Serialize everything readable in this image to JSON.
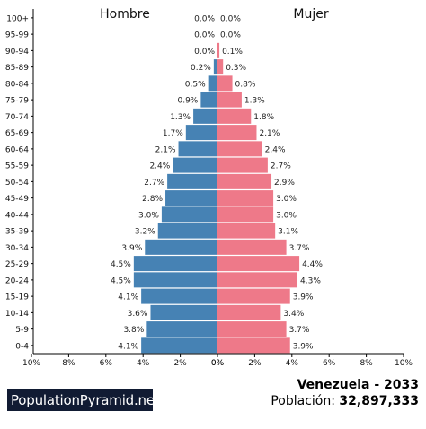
{
  "chart_data": {
    "type": "bar",
    "orientation": "horizontal-pyramid",
    "age_groups": [
      "0-4",
      "5-9",
      "10-14",
      "15-19",
      "20-24",
      "25-29",
      "30-34",
      "35-39",
      "40-44",
      "45-49",
      "50-54",
      "55-59",
      "60-64",
      "65-69",
      "70-74",
      "75-79",
      "80-84",
      "85-89",
      "90-94",
      "95-99",
      "100+"
    ],
    "series": [
      {
        "name": "Hombre",
        "values": [
          4.1,
          3.8,
          3.6,
          4.1,
          4.5,
          4.5,
          3.9,
          3.2,
          3.0,
          2.8,
          2.7,
          2.4,
          2.1,
          1.7,
          1.3,
          0.9,
          0.5,
          0.2,
          0.0,
          0.0,
          0.0
        ],
        "labels": [
          "4.1%",
          "3.8%",
          "3.6%",
          "4.1%",
          "4.5%",
          "4.5%",
          "3.9%",
          "3.2%",
          "3.0%",
          "2.8%",
          "2.7%",
          "2.4%",
          "2.1%",
          "1.7%",
          "1.3%",
          "0.9%",
          "0.5%",
          "0.2%",
          "0.0%",
          "0.0%",
          "0.0%"
        ]
      },
      {
        "name": "Mujer",
        "values": [
          3.9,
          3.7,
          3.4,
          3.9,
          4.3,
          4.4,
          3.7,
          3.1,
          3.0,
          3.0,
          2.9,
          2.7,
          2.4,
          2.1,
          1.8,
          1.3,
          0.8,
          0.3,
          0.1,
          0.0,
          0.0
        ],
        "labels": [
          "3.9%",
          "3.7%",
          "3.4%",
          "3.9%",
          "4.3%",
          "4.4%",
          "3.7%",
          "3.1%",
          "3.0%",
          "3.0%",
          "2.9%",
          "2.7%",
          "2.4%",
          "2.1%",
          "1.8%",
          "1.3%",
          "0.8%",
          "0.3%",
          "0.1%",
          "0.0%",
          "0.0%"
        ]
      }
    ],
    "xlim": [
      0,
      10
    ],
    "x_ticks_left": [
      "10%",
      "8%",
      "6%",
      "4%",
      "2%",
      "0%"
    ],
    "x_ticks_right": [
      "0%",
      "2%",
      "4%",
      "6%",
      "8%",
      "10%"
    ],
    "grid": false,
    "legend": "none",
    "colors": {
      "male": "#4682b4",
      "female": "#ee7989"
    }
  },
  "header": {
    "male_label": "Hombre",
    "female_label": "Mujer"
  },
  "brand": {
    "text": "PopulationPyramid.net"
  },
  "caption": {
    "country_year": "Venezuela - 2033",
    "population_label": "Población:",
    "population_value": "32,897,333"
  }
}
